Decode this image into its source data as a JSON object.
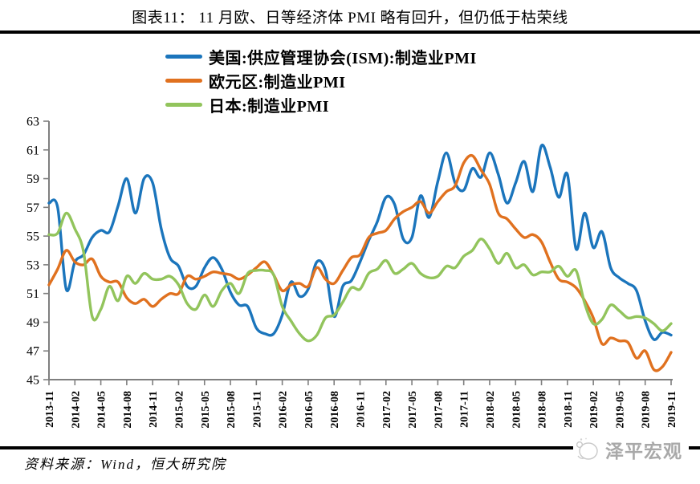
{
  "page": {
    "title": "图表11： 11 月欧、日等经济体 PMI 略有回升，但仍低于枯荣线",
    "source": "资料来源：Wind，恒大研究院",
    "watermark": "泽平宏观"
  },
  "chart_data": {
    "type": "line",
    "title": "图表11： 11 月欧、日等经济体 PMI 略有回升，但仍低于枯荣线",
    "xlabel": "",
    "ylabel": "",
    "ylim": [
      45,
      63
    ],
    "y_ticks": [
      45,
      47,
      49,
      51,
      53,
      55,
      57,
      59,
      61,
      63
    ],
    "grid": false,
    "legend_position": "top-left",
    "axis_color": "#7F7F7F",
    "x_frequency": "monthly",
    "x_start": "2013-11",
    "x_end": "2019-11",
    "x_tick_labels": [
      "2013-11",
      "2014-02",
      "2014-05",
      "2014-08",
      "2014-11",
      "2015-02",
      "2015-05",
      "2015-08",
      "2015-11",
      "2016-02",
      "2016-05",
      "2016-08",
      "2016-11",
      "2017-02",
      "2017-05",
      "2017-08",
      "2017-11",
      "2018-02",
      "2018-05",
      "2018-08",
      "2018-11",
      "2019-02",
      "2019-05",
      "2019-08",
      "2019-11"
    ],
    "series": [
      {
        "name": "美国:供应管理协会(ISM):制造业PMI",
        "color": "#1B75BC",
        "values": [
          57.3,
          57.0,
          51.3,
          53.2,
          53.7,
          54.9,
          55.4,
          55.3,
          57.1,
          59.0,
          56.6,
          59.0,
          58.7,
          55.5,
          53.5,
          52.9,
          51.5,
          51.5,
          52.8,
          53.5,
          52.7,
          51.1,
          50.2,
          50.1,
          48.6,
          48.2,
          48.2,
          49.5,
          51.8,
          50.8,
          51.3,
          53.2,
          52.6,
          49.4,
          51.5,
          51.9,
          53.2,
          54.7,
          56.0,
          57.7,
          57.2,
          54.8,
          54.9,
          57.8,
          56.3,
          58.8,
          60.8,
          58.7,
          58.2,
          59.7,
          59.1,
          60.8,
          59.3,
          57.3,
          58.7,
          60.2,
          58.1,
          61.3,
          59.8,
          57.7,
          59.3,
          54.1,
          56.6,
          54.2,
          55.3,
          52.8,
          52.1,
          51.7,
          51.2,
          49.1,
          47.8,
          48.3,
          48.1
        ]
      },
      {
        "name": "欧元区:制造业PMI",
        "color": "#E0711F",
        "values": [
          51.6,
          52.7,
          54.0,
          53.2,
          53.0,
          53.4,
          52.2,
          51.8,
          51.8,
          50.7,
          50.3,
          50.6,
          50.1,
          50.6,
          51.0,
          51.0,
          52.2,
          52.0,
          52.2,
          52.5,
          52.4,
          52.3,
          52.0,
          52.3,
          52.8,
          53.2,
          52.3,
          51.2,
          51.6,
          51.7,
          51.5,
          52.8,
          52.0,
          51.7,
          52.6,
          53.5,
          53.7,
          54.9,
          55.2,
          55.4,
          56.2,
          56.7,
          57.0,
          57.4,
          56.6,
          57.4,
          58.1,
          58.5,
          60.1,
          60.6,
          59.6,
          58.6,
          56.6,
          56.2,
          55.5,
          54.9,
          55.1,
          54.6,
          53.2,
          52.0,
          51.8,
          51.4,
          50.5,
          49.3,
          47.5,
          47.9,
          47.7,
          47.6,
          46.5,
          47.0,
          45.7,
          45.9,
          46.9
        ]
      },
      {
        "name": "日本:制造业PMI",
        "color": "#92C45C",
        "values": [
          55.1,
          55.2,
          56.6,
          55.5,
          53.9,
          49.4,
          49.9,
          51.5,
          50.5,
          52.2,
          51.7,
          52.4,
          52.0,
          52.0,
          52.2,
          51.6,
          50.3,
          49.9,
          50.9,
          50.1,
          51.2,
          51.7,
          51.0,
          52.4,
          52.6,
          52.6,
          52.3,
          50.1,
          49.1,
          48.2,
          47.7,
          48.1,
          49.3,
          49.5,
          50.4,
          51.4,
          51.3,
          52.4,
          52.7,
          53.3,
          52.4,
          52.7,
          53.1,
          52.4,
          52.1,
          52.2,
          52.9,
          52.8,
          53.6,
          54.0,
          54.8,
          54.1,
          53.1,
          53.8,
          52.8,
          53.0,
          52.3,
          52.5,
          52.5,
          52.9,
          52.2,
          52.6,
          50.3,
          48.9,
          49.2,
          50.2,
          49.8,
          49.3,
          49.4,
          49.3,
          48.9,
          48.4,
          48.9
        ]
      }
    ]
  }
}
